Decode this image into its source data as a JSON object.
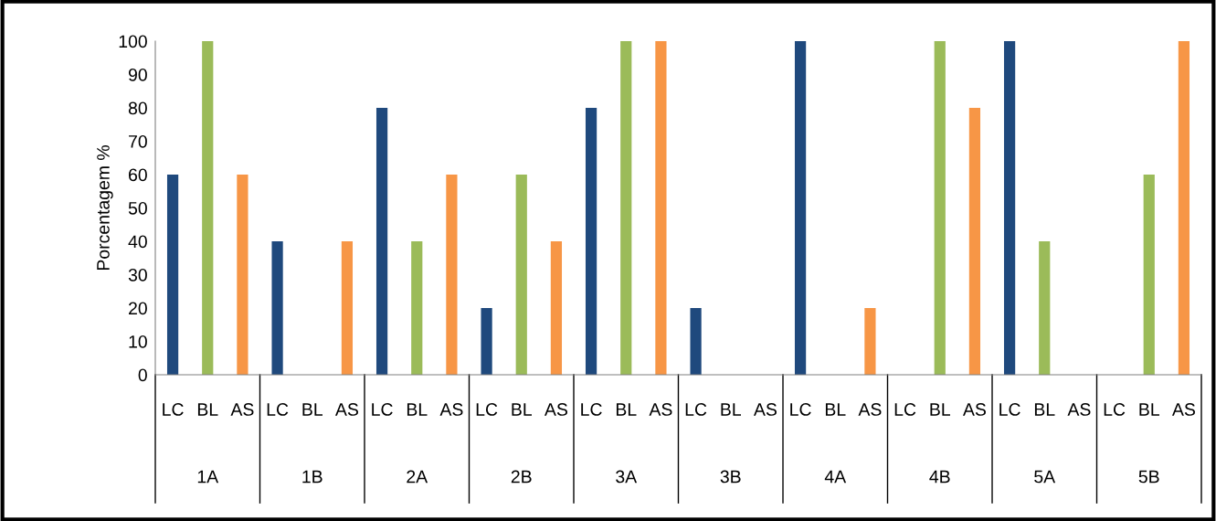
{
  "chart_data": {
    "type": "bar",
    "ylabel": "Porcentagem %",
    "categories": [
      "LC",
      "BL",
      "AS",
      "LC",
      "BL",
      "AS",
      "LC",
      "BL",
      "AS",
      "LC",
      "BL",
      "AS",
      "LC",
      "BL",
      "AS",
      "LC",
      "BL",
      "AS",
      "LC",
      "BL",
      "AS",
      "LC",
      "BL",
      "AS",
      "LC",
      "BL",
      "AS",
      "LC",
      "BL",
      "AS"
    ],
    "values": [
      60,
      100,
      60,
      40,
      0,
      40,
      80,
      40,
      60,
      20,
      60,
      40,
      80,
      100,
      100,
      20,
      0,
      0,
      100,
      0,
      20,
      0,
      100,
      80,
      100,
      40,
      0,
      0,
      60,
      100
    ],
    "colors": [
      "#1f497d",
      "#9bbb59",
      "#f79646",
      "#1f497d",
      "#9bbb59",
      "#f79646",
      "#1f497d",
      "#9bbb59",
      "#f79646",
      "#1f497d",
      "#9bbb59",
      "#f79646",
      "#1f497d",
      "#9bbb59",
      "#f79646",
      "#1f497d",
      "#9bbb59",
      "#f79646",
      "#1f497d",
      "#9bbb59",
      "#f79646",
      "#1f497d",
      "#9bbb59",
      "#f79646",
      "#1f497d",
      "#9bbb59",
      "#f79646",
      "#1f497d",
      "#9bbb59",
      "#f79646"
    ],
    "annotations": [
      "1A",
      "1B",
      "2A",
      "2B",
      "3A",
      "3B",
      "4A",
      "4B",
      "5A",
      "5B"
    ],
    "ylim": [
      0,
      100
    ],
    "yticks": [
      0,
      10,
      20,
      30,
      40,
      50,
      60,
      70,
      80,
      90,
      100
    ],
    "grid": false,
    "legend": false
  }
}
